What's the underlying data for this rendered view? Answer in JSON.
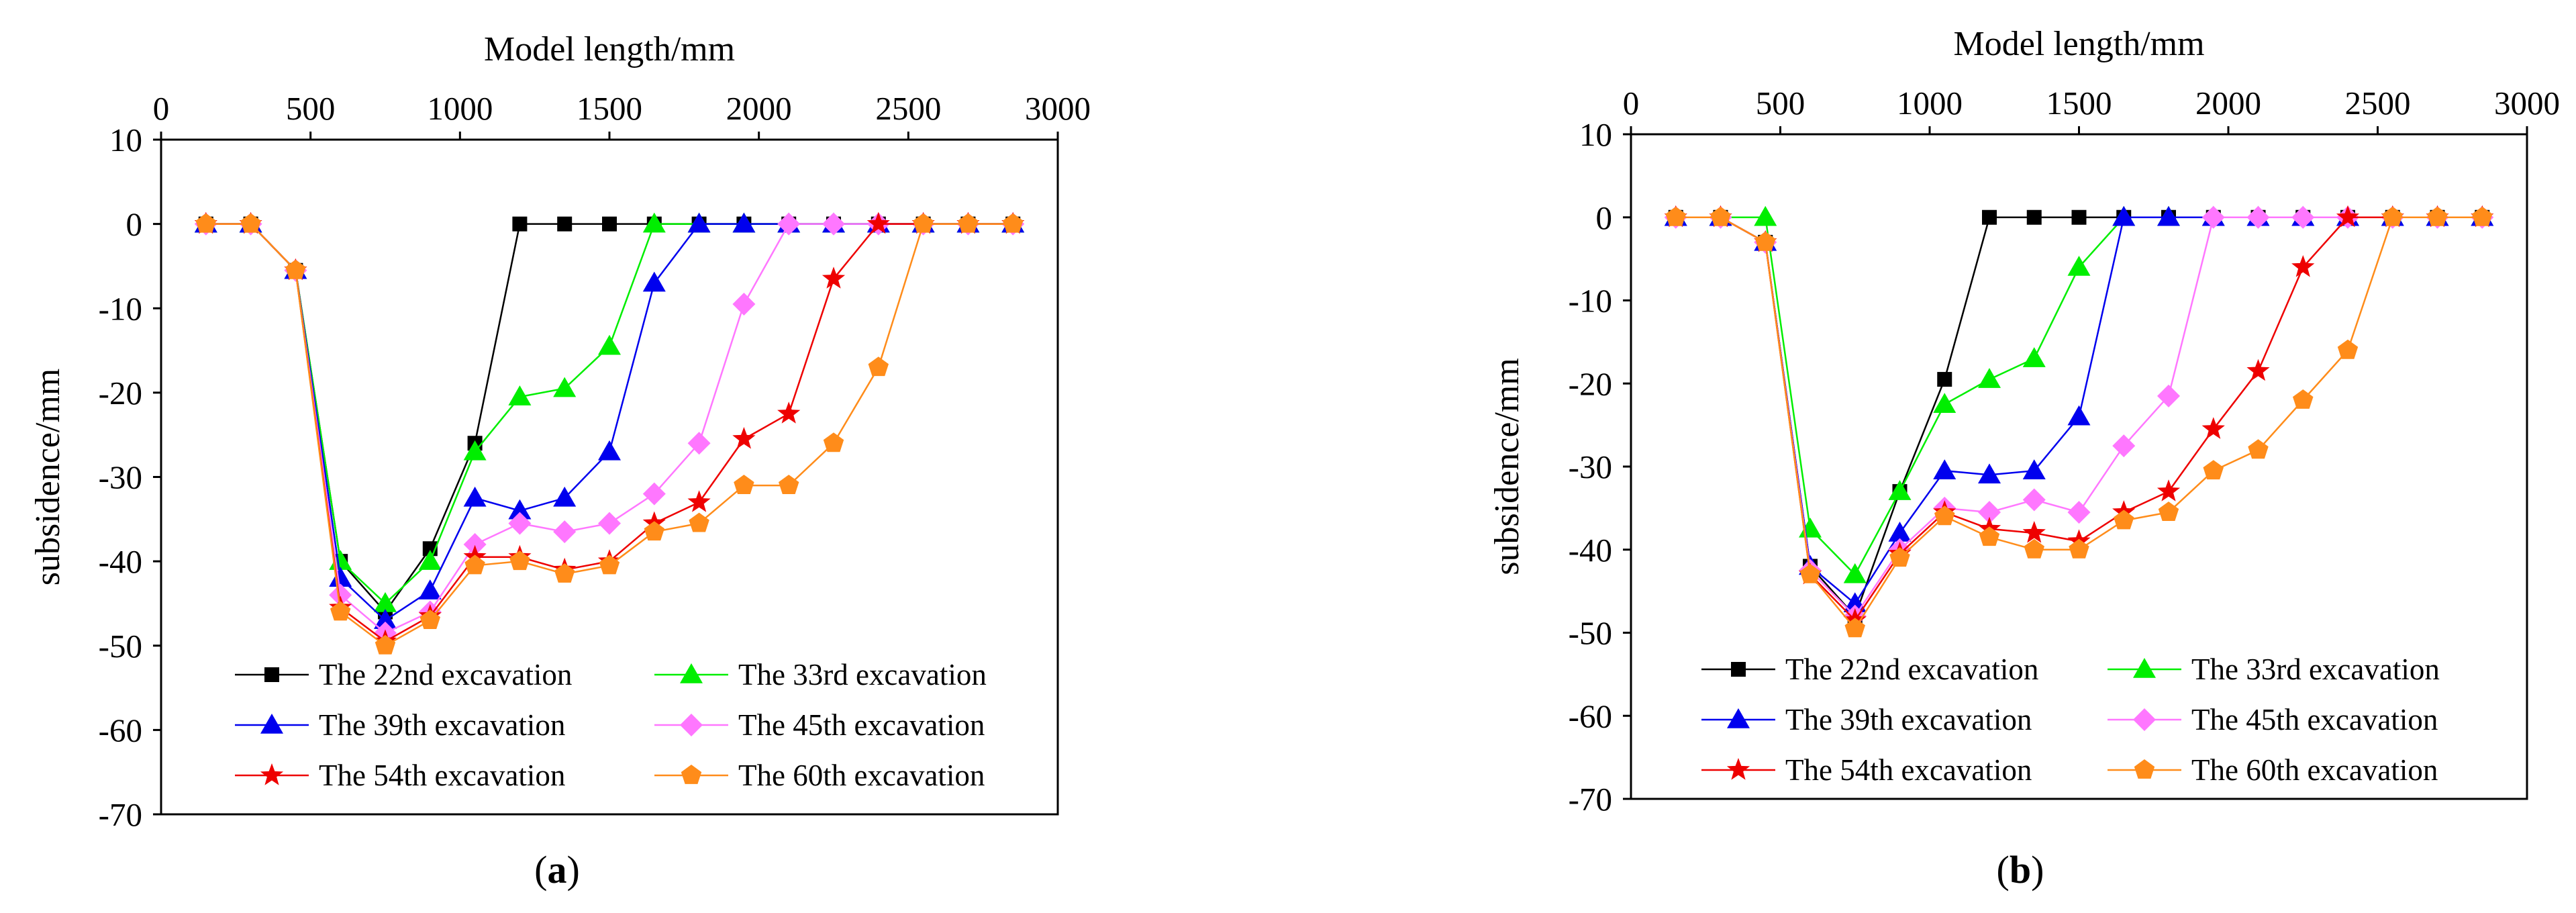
{
  "chart_data": [
    {
      "type": "line",
      "panel_label": "a",
      "xlabel": "Model length/mm",
      "ylabel": "subsidence/mm",
      "xlim": [
        0,
        3000
      ],
      "ylim": [
        -70,
        10
      ],
      "xticks": [
        0,
        500,
        1000,
        1500,
        2000,
        2500,
        3000
      ],
      "yticks": [
        10,
        0,
        -10,
        -20,
        -30,
        -40,
        -50,
        -60,
        -70
      ],
      "x_axis_position": "top",
      "grid": false,
      "legend_location": "bottom",
      "x": [
        150,
        300,
        450,
        600,
        750,
        900,
        1050,
        1200,
        1350,
        1500,
        1650,
        1800,
        1950,
        2100,
        2250,
        2400,
        2550,
        2700,
        2850
      ],
      "series": [
        {
          "name": "The 22nd excavation",
          "color": "#000000",
          "marker": "square",
          "values": [
            0,
            0,
            -5.5,
            -40,
            -46,
            -38.5,
            -26,
            0,
            0,
            0,
            0,
            0,
            0,
            0,
            0,
            0,
            0,
            0,
            0
          ]
        },
        {
          "name": "The 33rd excavation",
          "color": "#00ee00",
          "marker": "triangle",
          "values": [
            0,
            0,
            -5.5,
            -40,
            -45,
            -40,
            -27,
            -20.5,
            -19.5,
            -14.5,
            0,
            0,
            0,
            0,
            0,
            0,
            0,
            0,
            0
          ]
        },
        {
          "name": "The 39th excavation",
          "color": "#0000ee",
          "marker": "triangle",
          "values": [
            0,
            0,
            -5.5,
            -42,
            -47,
            -43.5,
            -32.5,
            -34,
            -32.5,
            -27,
            -7,
            0,
            0,
            0,
            0,
            0,
            0,
            0,
            0
          ]
        },
        {
          "name": "The 45th excavation",
          "color": "#ff77ff",
          "marker": "diamond",
          "values": [
            0,
            0,
            -5.5,
            -44,
            -48.5,
            -46,
            -38,
            -35.5,
            -36.5,
            -35.5,
            -32,
            -26,
            -9.5,
            0,
            0,
            0,
            0,
            0,
            0
          ]
        },
        {
          "name": "The 54th excavation",
          "color": "#ee0000",
          "marker": "star",
          "values": [
            0,
            0,
            -5.5,
            -45.5,
            -49.5,
            -46.5,
            -39.5,
            -39.5,
            -41,
            -40,
            -35.5,
            -33,
            -25.5,
            -22.5,
            -6.5,
            0,
            0,
            0,
            0
          ]
        },
        {
          "name": "The 60th excavation",
          "color": "#ff8c1a",
          "marker": "pentagon",
          "values": [
            0,
            0,
            -5.5,
            -46,
            -50,
            -47,
            -40.5,
            -40,
            -41.5,
            -40.5,
            -36.5,
            -35.5,
            -31,
            -31,
            -26,
            -17,
            0,
            0,
            0
          ]
        }
      ]
    },
    {
      "type": "line",
      "panel_label": "b",
      "xlabel": "Model length/mm",
      "ylabel": "subsidence/mm",
      "xlim": [
        0,
        3000
      ],
      "ylim": [
        -70,
        10
      ],
      "xticks": [
        0,
        500,
        1000,
        1500,
        2000,
        2500,
        3000
      ],
      "yticks": [
        10,
        0,
        -10,
        -20,
        -30,
        -40,
        -50,
        -60,
        -70
      ],
      "x_axis_position": "top",
      "grid": false,
      "legend_location": "bottom",
      "x": [
        150,
        300,
        450,
        600,
        750,
        900,
        1050,
        1200,
        1350,
        1500,
        1650,
        1800,
        1950,
        2100,
        2250,
        2400,
        2550,
        2700,
        2850
      ],
      "series": [
        {
          "name": "The 22nd excavation",
          "color": "#000000",
          "marker": "square",
          "values": [
            0,
            0,
            -3,
            -42,
            -48,
            -33,
            -19.5,
            0,
            0,
            0,
            0,
            0,
            0,
            0,
            0,
            0,
            0,
            0,
            0
          ]
        },
        {
          "name": "The 33rd excavation",
          "color": "#00ee00",
          "marker": "triangle",
          "values": [
            0,
            0,
            0,
            -37.5,
            -43,
            -33,
            -22.5,
            -19.5,
            -17,
            -6,
            0,
            0,
            0,
            0,
            0,
            0,
            0,
            0,
            0
          ]
        },
        {
          "name": "The 39th excavation",
          "color": "#0000ee",
          "marker": "triangle",
          "values": [
            0,
            0,
            -3,
            -42,
            -46.5,
            -38,
            -30.5,
            -31,
            -30.5,
            -24,
            0,
            0,
            0,
            0,
            0,
            0,
            0,
            0,
            0
          ]
        },
        {
          "name": "The 45th excavation",
          "color": "#ff77ff",
          "marker": "diamond",
          "values": [
            0,
            0,
            -3,
            -42.5,
            -48,
            -40,
            -35,
            -35.5,
            -34,
            -35.5,
            -27.5,
            -21.5,
            0,
            0,
            0,
            0,
            0,
            0,
            0
          ]
        },
        {
          "name": "The 54th excavation",
          "color": "#ee0000",
          "marker": "star",
          "values": [
            0,
            0,
            -3,
            -43,
            -48.5,
            -40.5,
            -35.5,
            -37.5,
            -38,
            -39,
            -35.5,
            -33,
            -25.5,
            -18.5,
            -6,
            0,
            0,
            0,
            0
          ]
        },
        {
          "name": "The 60th excavation",
          "color": "#ff8c1a",
          "marker": "pentagon",
          "values": [
            0,
            0,
            -3,
            -43,
            -49.5,
            -41,
            -36,
            -38.5,
            -40,
            -40,
            -36.5,
            -35.5,
            -30.5,
            -28,
            -22,
            -16,
            0,
            0,
            0
          ]
        }
      ]
    }
  ]
}
